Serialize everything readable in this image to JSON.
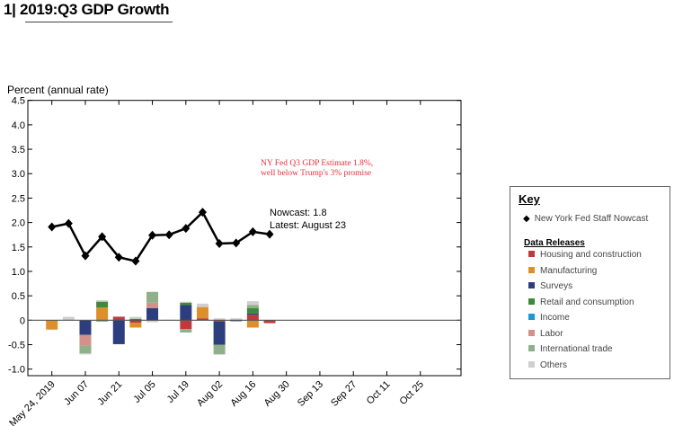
{
  "title": "1| 2019:Q3 GDP Growth",
  "chart_data": {
    "type": "bar+line",
    "ylabel": "Percent (annual rate)",
    "ylim": [
      -1.0,
      4.5
    ],
    "yticks": [
      "4.5",
      "4.0",
      "3.5",
      "3.0",
      "2.5",
      "2.0",
      "1.5",
      "1.0",
      "0.5",
      "0",
      "-0.5",
      "-1.0"
    ],
    "ytick_values": [
      4.5,
      4.0,
      3.5,
      3.0,
      2.5,
      2.0,
      1.5,
      1.0,
      0.5,
      0,
      -0.5,
      -1.0
    ],
    "xticks": [
      "May 24, 2019",
      "Jun 07",
      "Jun 21",
      "Jul 05",
      "Jul 19",
      "Aug 02",
      "Aug 16",
      "Aug 30",
      "Sep 13",
      "Sep 27",
      "Oct 11",
      "Oct 25"
    ],
    "weeks": [
      "May 24",
      "May 31",
      "Jun 07",
      "Jun 14",
      "Jun 21",
      "Jun 28",
      "Jul 05",
      "Jul 12",
      "Jul 19",
      "Jul 26",
      "Aug 02",
      "Aug 09",
      "Aug 16",
      "Aug 23"
    ],
    "nowcast": {
      "name": "New York Fed Staff Nowcast",
      "values": [
        1.91,
        1.98,
        1.32,
        1.71,
        1.29,
        1.21,
        1.74,
        1.75,
        1.88,
        2.21,
        1.57,
        1.58,
        1.81,
        1.76
      ]
    },
    "series": [
      {
        "name": "Housing and construction",
        "color": "#c0393f",
        "values": [
          0,
          0,
          0,
          0,
          0.07,
          -0.05,
          0,
          0,
          -0.18,
          0.04,
          -0.03,
          0,
          0.11,
          -0.06
        ]
      },
      {
        "name": "Manufacturing",
        "color": "#dd8f2c",
        "values": [
          -0.19,
          0,
          0,
          0.26,
          0,
          -0.1,
          0,
          0,
          0,
          0.23,
          0,
          0,
          -0.15,
          0
        ]
      },
      {
        "name": "Surveys",
        "color": "#2c3e7e",
        "values": [
          0,
          0,
          -0.3,
          0,
          -0.49,
          0,
          0.25,
          0,
          0.31,
          0,
          -0.47,
          -0.02,
          0.03,
          0
        ]
      },
      {
        "name": "Retail and consumption",
        "color": "#3d8a3d",
        "values": [
          0,
          0,
          0,
          0.12,
          0,
          0.03,
          0,
          0,
          0.05,
          0,
          0,
          0,
          0.11,
          0
        ]
      },
      {
        "name": "Income",
        "color": "#1b9ad6",
        "values": [
          0,
          0,
          0,
          0,
          0,
          0,
          0,
          0,
          0,
          0,
          0,
          0,
          0,
          0
        ]
      },
      {
        "name": "Labor",
        "color": "#d4918a",
        "values": [
          0,
          0,
          -0.22,
          0,
          0,
          0,
          0.11,
          0,
          0,
          0,
          0,
          0,
          0,
          0
        ]
      },
      {
        "name": "International trade",
        "color": "#8fb08a",
        "values": [
          0,
          0,
          -0.16,
          -0.03,
          0,
          0,
          0.22,
          0,
          -0.07,
          0,
          -0.2,
          0,
          0.06,
          0
        ]
      },
      {
        "name": "Others",
        "color": "#cfcfd2",
        "values": [
          -0.01,
          0.07,
          -0.02,
          0.03,
          0.01,
          0.04,
          -0.04,
          0.01,
          0.02,
          0.07,
          0.04,
          0.04,
          0.08,
          0
        ]
      }
    ],
    "annotations": {
      "estimate_line1": "NY Fed Q3 GDP Estimate 1.8%,",
      "estimate_line2": "well below Trump's 3% promise",
      "nowcast_label": "Nowcast:  1.8",
      "latest_label": "Latest: August 23"
    },
    "legend_placement": "right",
    "grid": false
  },
  "key": {
    "title": "Key",
    "nowcast_entry": "New York Fed Staff Nowcast",
    "releases_title": "Data Releases"
  },
  "colors": {
    "annotation": "#e8313b",
    "line": "#000000"
  }
}
